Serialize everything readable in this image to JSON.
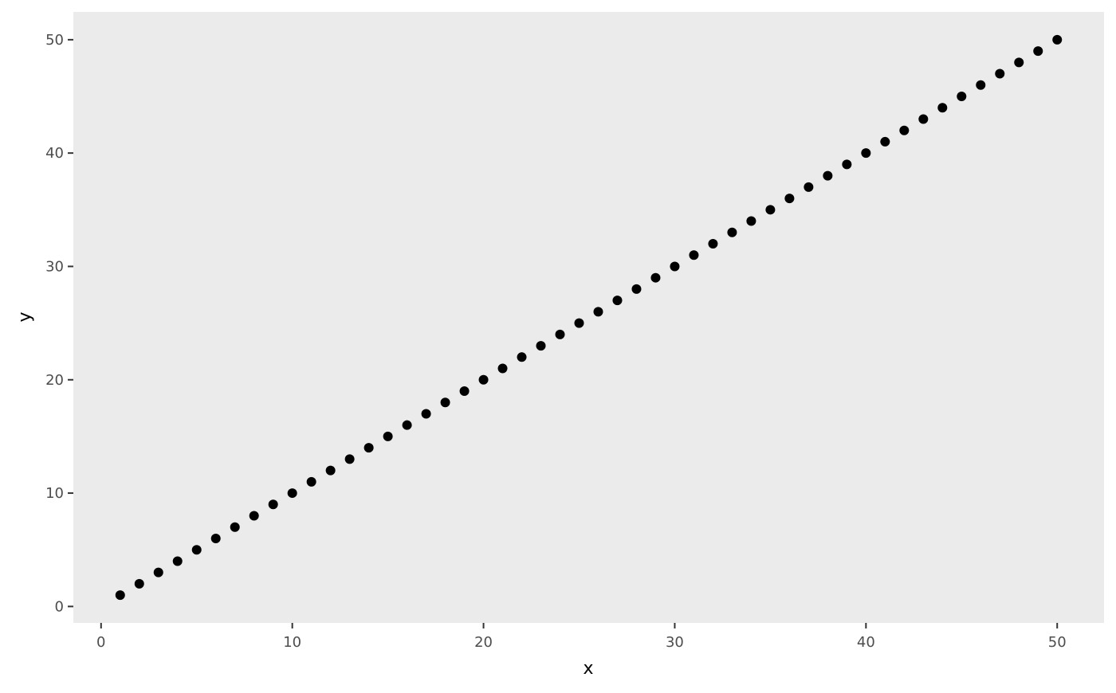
{
  "chart_data": {
    "type": "scatter",
    "title": "",
    "xlabel": "x",
    "ylabel": "y",
    "x": [
      1,
      2,
      3,
      4,
      5,
      6,
      7,
      8,
      9,
      10,
      11,
      12,
      13,
      14,
      15,
      16,
      17,
      18,
      19,
      20,
      21,
      22,
      23,
      24,
      25,
      26,
      27,
      28,
      29,
      30,
      31,
      32,
      33,
      34,
      35,
      36,
      37,
      38,
      39,
      40,
      41,
      42,
      43,
      44,
      45,
      46,
      47,
      48,
      49,
      50
    ],
    "y": [
      1,
      2,
      3,
      4,
      5,
      6,
      7,
      8,
      9,
      10,
      11,
      12,
      13,
      14,
      15,
      16,
      17,
      18,
      19,
      20,
      21,
      22,
      23,
      24,
      25,
      26,
      27,
      28,
      29,
      30,
      31,
      32,
      33,
      34,
      35,
      36,
      37,
      38,
      39,
      40,
      41,
      42,
      43,
      44,
      45,
      46,
      47,
      48,
      49,
      50
    ],
    "xlim": [
      -1.45,
      52.45
    ],
    "ylim": [
      -1.45,
      52.45
    ],
    "xticks": [
      "0",
      "10",
      "20",
      "30",
      "40",
      "50"
    ],
    "yticks": [
      "0",
      "10",
      "20",
      "30",
      "40",
      "50"
    ],
    "grid": false,
    "colors": {
      "panel": "#ebebeb",
      "point": "#000000",
      "tick_text": "#4d4d4d"
    }
  }
}
